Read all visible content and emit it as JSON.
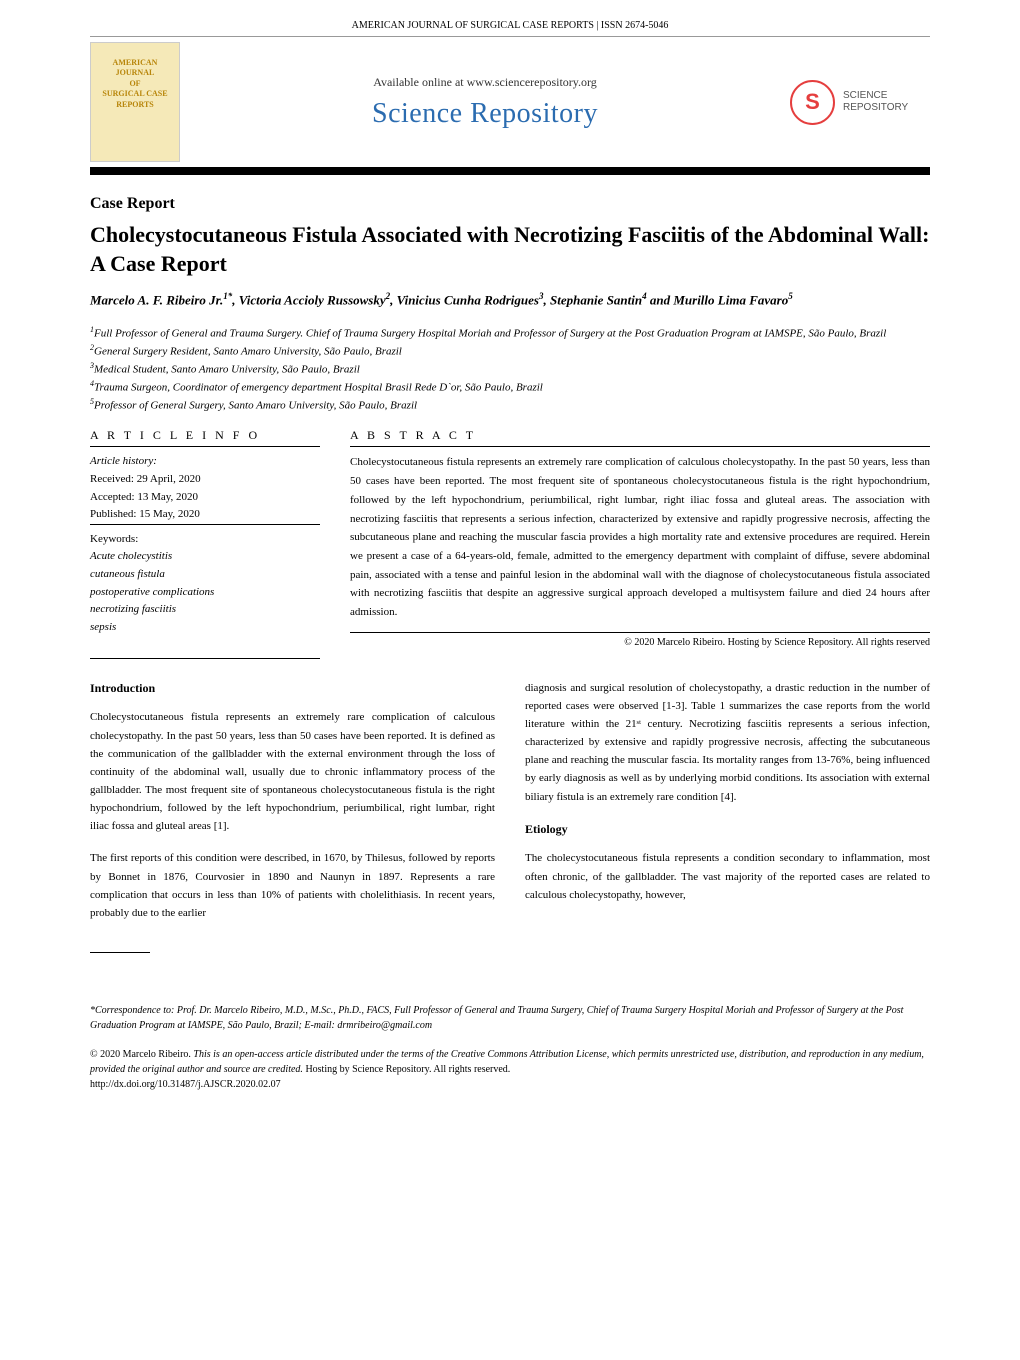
{
  "journal_header": "AMERICAN JOURNAL OF SURGICAL CASE REPORTS | ISSN 2674-5046",
  "journal_cover": {
    "line1": "AMERICAN JOURNAL",
    "line2": "OF",
    "line3": "SURGICAL CASE",
    "line4": "REPORTS"
  },
  "banner": {
    "available": "Available online at www.sciencerepository.org",
    "title": "Science Repository",
    "logo_initial": "S",
    "logo_text1": "SCIENCE",
    "logo_text2": "REPOSITORY"
  },
  "case_report_label": "Case Report",
  "title": "Cholecystocutaneous Fistula Associated with Necrotizing Fasciitis of the Abdominal Wall: A Case Report",
  "authors_html": "Marcelo A. F. Ribeiro Jr.<sup>1*</sup>, Victoria Accioly Russowsky<sup>2</sup>, Vinicius Cunha Rodrigues<sup>3</sup>, Stephanie Santin<sup>4</sup> and Murillo Lima Favaro<sup>5</sup>",
  "affiliations": [
    "<sup>1</sup>Full Professor of General and Trauma Surgery. Chief of Trauma Surgery Hospital Moriah and Professor of Surgery at the Post Graduation Program at IAMSPE, São Paulo, Brazil",
    "<sup>2</sup>General Surgery Resident, Santo Amaro University, São Paulo, Brazil",
    "<sup>3</sup>Medical Student, Santo Amaro University, São Paulo, Brazil",
    "<sup>4</sup>Trauma Surgeon, Coordinator of emergency department Hospital Brasil Rede D`or, São Paulo, Brazil",
    "<sup>5</sup>Professor of General Surgery, Santo Amaro University, São Paulo, Brazil"
  ],
  "article_info": {
    "heading": "A R T I C L E  I N F O",
    "history_label": "Article history:",
    "received": "Received: 29 April, 2020",
    "accepted": "Accepted: 13 May, 2020",
    "published": "Published: 15 May, 2020",
    "keywords_label": "Keywords:",
    "keywords": [
      "Acute cholecystitis",
      "cutaneous fistula",
      "postoperative complications",
      "necrotizing fasciitis",
      "sepsis"
    ]
  },
  "abstract": {
    "heading": "A B S T R A C T",
    "text": "Cholecystocutaneous fistula represents an extremely rare complication of calculous cholecystopathy. In the past 50 years, less than 50 cases have been reported. The most frequent site of spontaneous cholecystocutaneous fistula is the right hypochondrium, followed by the left hypochondrium, periumbilical, right lumbar, right iliac fossa and gluteal areas. The association with necrotizing fasciitis that represents a serious infection, characterized by extensive and rapidly progressive necrosis, affecting the subcutaneous plane and reaching the muscular fascia provides a high mortality rate and extensive procedures are required. Herein we present a case of a 64-years-old, female, admitted to the emergency department with complaint of diffuse, severe abdominal pain, associated with a tense and painful lesion in the abdominal wall with the diagnose of cholecystocutaneous fistula associated with necrotizing fasciitis that despite an aggressive surgical approach developed a multisystem failure and died 24 hours after admission."
  },
  "copyright": "© 2020 Marcelo Ribeiro. Hosting by Science Repository. All rights reserved",
  "sections": {
    "intro_head": "Introduction",
    "intro_p1": "Cholecystocutaneous fistula represents an extremely rare complication of calculous cholecystopathy. In the past 50 years, less than 50 cases have been reported. It is defined as the communication of the gallbladder with the external environment through the loss of continuity of the abdominal wall, usually due to chronic inflammatory process of the gallbladder. The most frequent site of spontaneous cholecystocutaneous fistula is the right hypochondrium, followed by the left hypochondrium, periumbilical, right lumbar, right iliac fossa and gluteal areas [1].",
    "intro_p2": "The first reports of this condition were described, in 1670, by Thilesus, followed by reports by Bonnet in 1876, Courvosier in 1890 and Naunyn in 1897. Represents a rare complication that occurs in less than 10% of patients with cholelithiasis. In recent years, probably due to the earlier",
    "col2_p1": "diagnosis and surgical resolution of cholecystopathy, a drastic reduction in the number of reported cases were observed [1-3]. Table 1 summarizes the case reports from the world literature within the 21ˢᵗ century. Necrotizing fasciitis represents a serious infection, characterized by extensive and rapidly progressive necrosis, affecting the subcutaneous plane and reaching the muscular fascia. Its mortality ranges from 13-76%, being influenced by early diagnosis as well as by underlying morbid conditions. Its association with external biliary fistula is an extremely rare condition [4].",
    "etiology_head": "Etiology",
    "etiology_p1": "The cholecystocutaneous fistula represents a condition secondary to inflammation, most often chronic, of the gallbladder. The vast majority of the reported cases are related to calculous cholecystopathy, however,"
  },
  "footer": {
    "correspondence": "*Correspondence to: Prof. Dr. Marcelo Ribeiro, M.D., M.Sc., Ph.D., FACS, Full Professor of General and Trauma Surgery, Chief of Trauma Surgery Hospital Moriah and Professor of Surgery at the Post Graduation Program at IAMSPE, São Paulo, Brazil; E-mail: drmribeiro@gmail.com",
    "license_pre": "© 2020 Marcelo Ribeiro. ",
    "license_italic": "This is an open-access article distributed under the terms of the Creative Commons Attribution License, which permits unrestricted use, distribution, and reproduction in any medium, provided the original author and source are credited.",
    "license_post": " Hosting by Science Repository. All rights reserved.",
    "doi": "http://dx.doi.org/10.31487/j.AJSCR.2020.02.07"
  }
}
